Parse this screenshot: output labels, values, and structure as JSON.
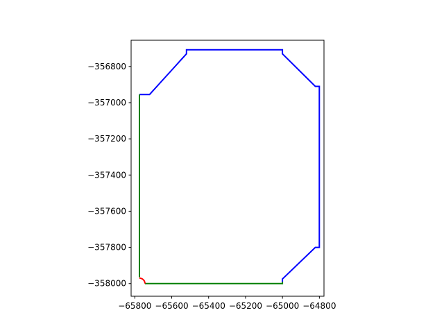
{
  "chart_data": {
    "type": "line",
    "title": "",
    "xlabel": "",
    "ylabel": "",
    "xlim": [
      -65820,
      -64775
    ],
    "ylim": [
      -358070,
      -356655
    ],
    "grid": false,
    "legend": "none",
    "xticks": [
      -65800,
      -65600,
      -65400,
      -65200,
      -65000,
      -64800
    ],
    "xtick_labels": [
      "−65800",
      "−65600",
      "−65400",
      "−65200",
      "−65000",
      "−64800"
    ],
    "yticks": [
      -356800,
      -357000,
      -357200,
      -357400,
      -357600,
      -357800,
      -358000
    ],
    "ytick_labels": [
      "−356800",
      "−357000",
      "−357200",
      "−357400",
      "−357600",
      "−357800",
      "−358000"
    ],
    "series": [
      {
        "color": "#0000ff",
        "points": [
          [
            -65000,
            -357975
          ],
          [
            -65000,
            -357990
          ],
          [
            -65000,
            -357975
          ],
          [
            -64822,
            -357800
          ],
          [
            -64800,
            -357800
          ],
          [
            -64800,
            -356910
          ],
          [
            -64822,
            -356910
          ],
          [
            -65000,
            -356730
          ],
          [
            -65000,
            -356708
          ],
          [
            -65520,
            -356708
          ],
          [
            -65520,
            -356730
          ],
          [
            -65720,
            -356955
          ],
          [
            -65775,
            -356955
          ]
        ]
      },
      {
        "color": "#008000",
        "points": [
          [
            -65775,
            -356955
          ],
          [
            -65775,
            -357965
          ]
        ]
      },
      {
        "color": "#008000",
        "points": [
          [
            -65745,
            -358000
          ],
          [
            -65000,
            -358000
          ],
          [
            -65000,
            -357990
          ]
        ]
      },
      {
        "color": "#ff0000",
        "arc": {
          "center": [
            -65775,
            -358000
          ],
          "radius": 30,
          "start_deg": 90,
          "end_deg": 0,
          "steps": 12
        }
      }
    ]
  }
}
